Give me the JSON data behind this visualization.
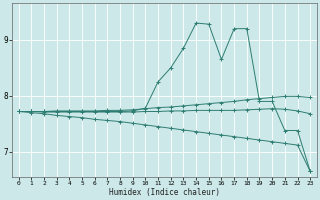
{
  "title": "",
  "xlabel": "Humidex (Indice chaleur)",
  "ylabel": "",
  "bg_color": "#cce8e8",
  "line_color": "#2e7d72",
  "grid_color": "#ffffff",
  "xlim": [
    -0.5,
    23.5
  ],
  "ylim": [
    6.55,
    9.65
  ],
  "x_ticks": [
    0,
    1,
    2,
    3,
    4,
    5,
    6,
    7,
    8,
    9,
    10,
    11,
    12,
    13,
    14,
    15,
    16,
    17,
    18,
    19,
    20,
    21,
    22,
    23
  ],
  "y_ticks": [
    7,
    8,
    9
  ],
  "series": {
    "line1_x": [
      0,
      1,
      2,
      3,
      4,
      5,
      6,
      7,
      8,
      9,
      10,
      11,
      12,
      13,
      14,
      15,
      16,
      17,
      18,
      19,
      20,
      21,
      22,
      23
    ],
    "line1_y": [
      7.72,
      7.72,
      7.72,
      7.72,
      7.72,
      7.72,
      7.72,
      7.72,
      7.72,
      7.73,
      7.78,
      8.25,
      8.5,
      8.85,
      9.3,
      9.28,
      8.65,
      9.2,
      9.2,
      7.9,
      7.9,
      7.38,
      7.38,
      6.65
    ],
    "line2_x": [
      0,
      1,
      2,
      3,
      4,
      5,
      6,
      7,
      8,
      9,
      10,
      11,
      12,
      13,
      14,
      15,
      16,
      17,
      18,
      19,
      20,
      21,
      22,
      23
    ],
    "line2_y": [
      7.72,
      7.72,
      7.72,
      7.73,
      7.73,
      7.73,
      7.73,
      7.74,
      7.74,
      7.75,
      7.77,
      7.79,
      7.8,
      7.82,
      7.84,
      7.86,
      7.88,
      7.9,
      7.93,
      7.95,
      7.97,
      7.99,
      7.99,
      7.97
    ],
    "line3_x": [
      0,
      1,
      2,
      3,
      4,
      5,
      6,
      7,
      8,
      9,
      10,
      11,
      12,
      13,
      14,
      15,
      16,
      17,
      18,
      19,
      20,
      21,
      22,
      23
    ],
    "line3_y": [
      7.72,
      7.72,
      7.71,
      7.71,
      7.71,
      7.71,
      7.71,
      7.71,
      7.71,
      7.71,
      7.72,
      7.72,
      7.73,
      7.73,
      7.74,
      7.74,
      7.74,
      7.74,
      7.75,
      7.76,
      7.77,
      7.76,
      7.73,
      7.68
    ],
    "line4_x": [
      0,
      1,
      2,
      3,
      4,
      5,
      6,
      7,
      8,
      9,
      10,
      11,
      12,
      13,
      14,
      15,
      16,
      17,
      18,
      19,
      20,
      21,
      22,
      23
    ],
    "line4_y": [
      7.72,
      7.7,
      7.68,
      7.65,
      7.63,
      7.61,
      7.58,
      7.56,
      7.54,
      7.51,
      7.48,
      7.45,
      7.42,
      7.39,
      7.36,
      7.33,
      7.3,
      7.27,
      7.24,
      7.21,
      7.18,
      7.15,
      7.12,
      6.65
    ]
  }
}
